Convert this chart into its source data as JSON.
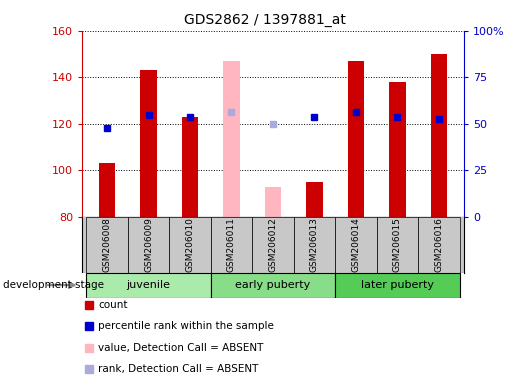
{
  "title": "GDS2862 / 1397881_at",
  "samples": [
    "GSM206008",
    "GSM206009",
    "GSM206010",
    "GSM206011",
    "GSM206012",
    "GSM206013",
    "GSM206014",
    "GSM206015",
    "GSM206016"
  ],
  "count_values": [
    103,
    143,
    123,
    147,
    93,
    95,
    147,
    138,
    150
  ],
  "count_absent": [
    false,
    false,
    false,
    true,
    true,
    false,
    false,
    false,
    false
  ],
  "rank_values": [
    118,
    124,
    123,
    125,
    120,
    123,
    125,
    123,
    122
  ],
  "rank_absent": [
    false,
    false,
    false,
    true,
    true,
    false,
    false,
    false,
    false
  ],
  "ylim_left": [
    80,
    160
  ],
  "ylim_right": [
    0,
    100
  ],
  "yticks_left": [
    80,
    100,
    120,
    140,
    160
  ],
  "yticks_right": [
    0,
    25,
    50,
    75,
    100
  ],
  "ytick_labels_right": [
    "0",
    "25",
    "50",
    "75",
    "100%"
  ],
  "color_count_present": "#CC0000",
  "color_count_absent": "#FFB6C1",
  "color_rank_present": "#0000CC",
  "color_rank_absent": "#AAAADD",
  "bar_width": 0.4,
  "bar_bottom": 80,
  "group_colors": [
    "#AAEAAA",
    "#88DD88",
    "#55CC55"
  ],
  "group_labels": [
    "juvenile",
    "early puberty",
    "later puberty"
  ],
  "group_sample_ranges": [
    [
      0,
      2
    ],
    [
      3,
      5
    ],
    [
      6,
      8
    ]
  ],
  "background_plot": "#FFFFFF",
  "background_label": "#C8C8C8",
  "dev_stage_label": "development stage",
  "legend_items": [
    {
      "color": "#CC0000",
      "marker": "s",
      "label": "count"
    },
    {
      "color": "#0000CC",
      "marker": "s",
      "label": "percentile rank within the sample"
    },
    {
      "color": "#FFB6C1",
      "marker": "s",
      "label": "value, Detection Call = ABSENT"
    },
    {
      "color": "#AAAADD",
      "marker": "s",
      "label": "rank, Detection Call = ABSENT"
    }
  ]
}
